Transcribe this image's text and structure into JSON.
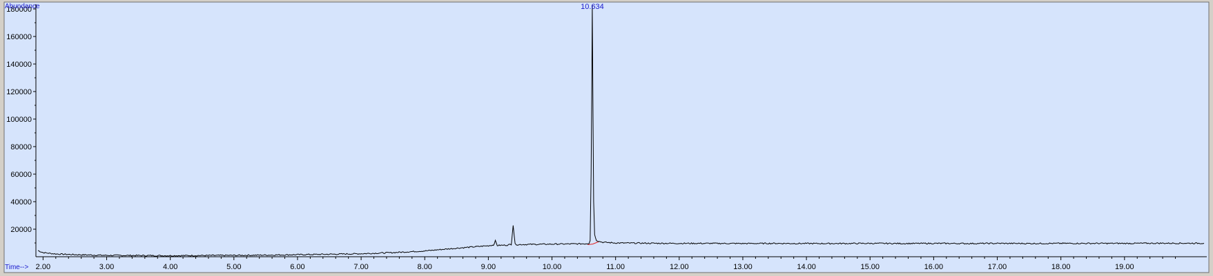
{
  "colors": {
    "plot_background": "#d6e4fc",
    "frame": "#6e6e6e",
    "trace": "#000000",
    "axis_title": "#1a1acc",
    "peak_label": "#1a1acc",
    "baseline_marker": "#e02020"
  },
  "chart_data": {
    "type": "line",
    "title": "",
    "xlabel": "Time-->",
    "ylabel": "Abundance",
    "xlim": [
      1.92,
      20.25
    ],
    "ylim": [
      0,
      185000
    ],
    "grid": false,
    "x_ticks": [
      "2.00",
      "3.00",
      "4.00",
      "5.00",
      "6.00",
      "7.00",
      "8.00",
      "9.00",
      "10.00",
      "11.00",
      "12.00",
      "13.00",
      "14.00",
      "15.00",
      "16.00",
      "17.00",
      "18.00",
      "19.00"
    ],
    "y_ticks": [
      "20000",
      "40000",
      "60000",
      "80000",
      "100000",
      "120000",
      "140000",
      "160000",
      "180000"
    ],
    "series": [
      {
        "x": [
          1.92,
          2.0,
          2.2,
          2.5,
          3.0,
          3.5,
          4.0,
          4.5,
          5.0,
          5.5,
          6.0,
          6.5,
          7.0,
          7.5,
          8.0,
          8.5,
          9.0,
          9.08,
          9.11,
          9.14,
          9.2,
          9.3,
          9.36,
          9.39,
          9.42,
          9.46,
          9.55,
          9.7,
          9.9,
          10.1,
          10.3,
          10.5,
          10.58,
          10.6,
          10.615,
          10.625,
          10.634,
          10.645,
          10.655,
          10.67,
          10.7,
          10.75,
          10.8,
          11.0,
          11.5,
          12.0,
          12.5,
          13.0,
          13.5,
          14.0,
          14.5,
          15.0,
          15.5,
          16.0,
          16.5,
          17.0,
          17.5,
          18.0,
          18.5,
          19.0,
          19.5,
          20.0,
          20.25
        ],
        "y": [
          4500,
          3000,
          2000,
          1500,
          1000,
          900,
          800,
          900,
          1000,
          1200,
          1500,
          1800,
          2200,
          3000,
          4200,
          6200,
          8000,
          8500,
          11500,
          8200,
          8300,
          8500,
          9000,
          23000,
          9200,
          8800,
          8900,
          9000,
          9100,
          9200,
          9300,
          9400,
          9600,
          12000,
          60000,
          115000,
          183000,
          100000,
          40000,
          16000,
          12000,
          11000,
          10500,
          10000,
          9800,
          9700,
          9700,
          9600,
          9700,
          9600,
          9600,
          9700,
          9600,
          9700,
          9600,
          9700,
          9600,
          9700,
          9700,
          9700,
          9800,
          9800,
          9800
        ]
      }
    ],
    "annotations": [
      {
        "text": "10.634",
        "x": 10.634,
        "y": 183000
      }
    ],
    "baseline_markers": [
      {
        "x": [
          10.56,
          10.64,
          10.74
        ],
        "y": [
          8800,
          9200,
          11000
        ]
      }
    ]
  }
}
